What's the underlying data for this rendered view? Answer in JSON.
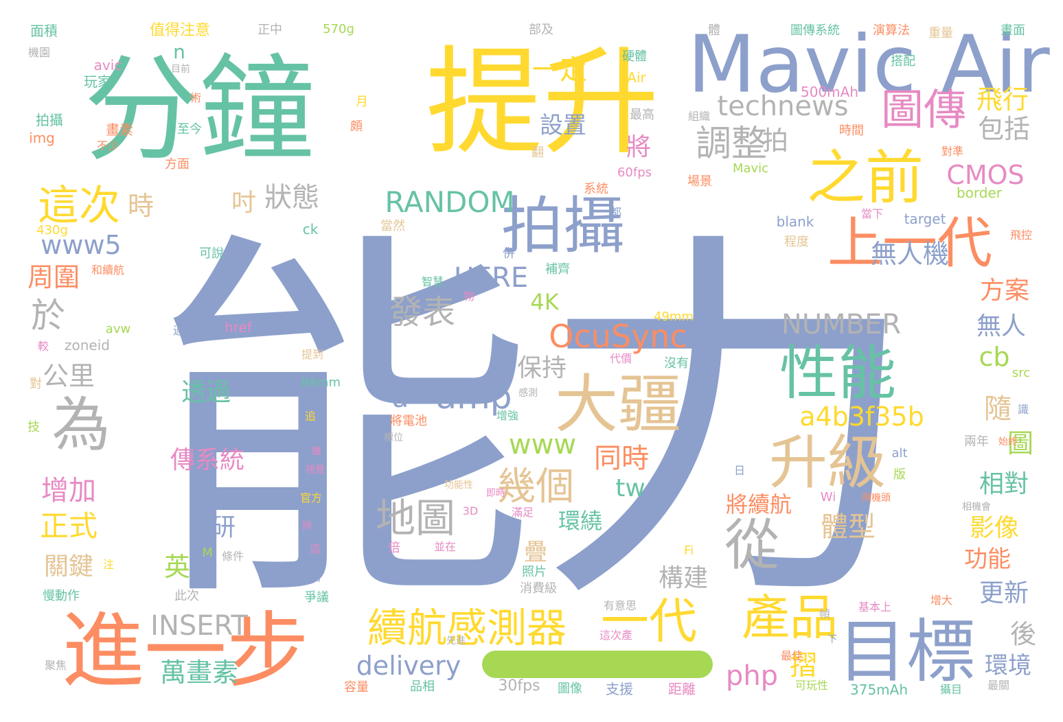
{
  "palette": {
    "blue": "#8da0cb",
    "green": "#66c2a5",
    "orange": "#fc8d62",
    "yellow": "#ffd92f",
    "pink": "#e78ac3",
    "lime": "#a6d854",
    "tan": "#e5c494",
    "gray": "#b3b3b3"
  },
  "bar_color": "#a6d854",
  "words": [
    {
      "t": "能力",
      "c": "blue"
    },
    {
      "t": "分鐘",
      "c": "green"
    },
    {
      "t": "提升",
      "c": "yellow"
    },
    {
      "t": "Mavic Air",
      "c": "blue"
    },
    {
      "t": "進一步",
      "c": "orange"
    },
    {
      "t": "目標",
      "c": "blue"
    },
    {
      "t": "拍攝",
      "c": "blue"
    },
    {
      "t": "之前",
      "c": "yellow"
    },
    {
      "t": "大疆",
      "c": "tan"
    },
    {
      "t": "性能",
      "c": "green"
    },
    {
      "t": "升級",
      "c": "tan"
    },
    {
      "t": "上一代",
      "c": "orange"
    },
    {
      "t": "為",
      "c": "gray"
    },
    {
      "t": "從",
      "c": "gray"
    },
    {
      "t": "圖傳",
      "c": "pink"
    },
    {
      "t": "產品",
      "c": "yellow"
    },
    {
      "t": "一代",
      "c": "yellow"
    },
    {
      "t": "續航感測器",
      "c": "yellow"
    },
    {
      "t": "地圖",
      "c": "gray"
    },
    {
      "t": "幾個",
      "c": "tan"
    },
    {
      "t": "發表",
      "c": "gray"
    },
    {
      "t": "OcuSync",
      "c": "orange"
    },
    {
      "t": "這次",
      "c": "yellow"
    },
    {
      "t": "調整",
      "c": "gray"
    },
    {
      "t": "technews",
      "c": "gray"
    },
    {
      "t": "RANDOM",
      "c": "green"
    },
    {
      "t": "amp",
      "c": "blue"
    },
    {
      "t": "a4b3f35b",
      "c": "yellow"
    },
    {
      "t": "一定",
      "c": "yellow"
    },
    {
      "t": "狀態",
      "c": "gray"
    },
    {
      "t": "飛行",
      "c": "yellow"
    },
    {
      "t": "包括",
      "c": "gray"
    },
    {
      "t": "CMOS",
      "c": "pink"
    },
    {
      "t": "www5",
      "c": "blue"
    },
    {
      "t": "於",
      "c": "gray"
    },
    {
      "t": "HERE",
      "c": "blue"
    },
    {
      "t": "NUMBER",
      "c": "gray"
    },
    {
      "t": "INSERT",
      "c": "gray"
    },
    {
      "t": "delivery",
      "c": "blue"
    },
    {
      "t": "www",
      "c": "lime"
    },
    {
      "t": "同時",
      "c": "orange"
    },
    {
      "t": "無人機",
      "c": "blue"
    },
    {
      "t": "萬畫素",
      "c": "green"
    },
    {
      "t": "增加",
      "c": "pink"
    },
    {
      "t": "正式",
      "c": "yellow"
    },
    {
      "t": "公里",
      "c": "gray"
    },
    {
      "t": "時",
      "c": "tan"
    },
    {
      "t": "周圍",
      "c": "orange"
    },
    {
      "t": "將",
      "c": "pink"
    },
    {
      "t": "設置",
      "c": "blue"
    },
    {
      "t": "拍",
      "c": "gray"
    },
    {
      "t": "方案",
      "c": "orange"
    },
    {
      "t": "無人",
      "c": "blue"
    },
    {
      "t": "cb",
      "c": "lime"
    },
    {
      "t": "隨",
      "c": "tan"
    },
    {
      "t": "圖",
      "c": "lime"
    },
    {
      "t": "相對",
      "c": "green"
    },
    {
      "t": "影像",
      "c": "yellow"
    },
    {
      "t": "功能",
      "c": "orange"
    },
    {
      "t": "更新",
      "c": "blue"
    },
    {
      "t": "後",
      "c": "gray"
    },
    {
      "t": "環境",
      "c": "blue"
    },
    {
      "t": "體型",
      "c": "tan"
    },
    {
      "t": "將續航",
      "c": "orange"
    },
    {
      "t": "環繞",
      "c": "green"
    },
    {
      "t": "構建",
      "c": "gray"
    },
    {
      "t": "php",
      "c": "pink"
    },
    {
      "t": "摺",
      "c": "yellow"
    },
    {
      "t": "tw",
      "c": "green"
    },
    {
      "t": "4K",
      "c": "lime"
    },
    {
      "t": "a",
      "c": "blue"
    },
    {
      "t": "保持",
      "c": "gray"
    },
    {
      "t": "透過",
      "c": "green"
    },
    {
      "t": "傳系統",
      "c": "pink"
    },
    {
      "t": "自研",
      "c": "blue"
    },
    {
      "t": "關鍵",
      "c": "tan"
    },
    {
      "t": "英",
      "c": "lime"
    },
    {
      "t": "疊",
      "c": "tan"
    },
    {
      "t": "n",
      "c": "green"
    },
    {
      "t": "吋",
      "c": "tan"
    },
    {
      "t": "面積",
      "c": "green"
    },
    {
      "t": "值得注意",
      "c": "yellow"
    },
    {
      "t": "正中",
      "c": "gray"
    },
    {
      "t": "570g",
      "c": "lime"
    },
    {
      "t": "部及",
      "c": "gray"
    },
    {
      "t": "體",
      "c": "gray"
    },
    {
      "t": "圖傳系統",
      "c": "green"
    },
    {
      "t": "演算法",
      "c": "orange"
    },
    {
      "t": "畫面",
      "c": "green"
    },
    {
      "t": "重量",
      "c": "tan"
    },
    {
      "t": "搭配",
      "c": "green"
    },
    {
      "t": "機園",
      "c": "gray"
    },
    {
      "t": "avic",
      "c": "pink"
    },
    {
      "t": "玩家",
      "c": "green"
    },
    {
      "t": "目前",
      "c": "gray"
    },
    {
      "t": "硬體",
      "c": "green"
    },
    {
      "t": "Air",
      "c": "yellow"
    },
    {
      "t": "術",
      "c": "orange"
    },
    {
      "t": "500mAh",
      "c": "pink"
    },
    {
      "t": "拍攝",
      "c": "green"
    },
    {
      "t": "月",
      "c": "yellow"
    },
    {
      "t": "最高",
      "c": "gray"
    },
    {
      "t": "組織",
      "c": "gray"
    },
    {
      "t": "時間",
      "c": "orange"
    },
    {
      "t": "畫素",
      "c": "orange"
    },
    {
      "t": "不少",
      "c": "orange"
    },
    {
      "t": "img",
      "c": "orange"
    },
    {
      "t": "至今",
      "c": "green"
    },
    {
      "t": "頗",
      "c": "orange"
    },
    {
      "t": "翻",
      "c": "tan"
    },
    {
      "t": "方面",
      "c": "orange"
    },
    {
      "t": "60fps",
      "c": "pink"
    },
    {
      "t": "場景",
      "c": "orange"
    },
    {
      "t": "Mavic",
      "c": "lime"
    },
    {
      "t": "border",
      "c": "lime"
    },
    {
      "t": "系統",
      "c": "orange"
    },
    {
      "t": "對準",
      "c": "orange"
    },
    {
      "t": "430g",
      "c": "yellow"
    },
    {
      "t": "都",
      "c": "blue"
    },
    {
      "t": "blank",
      "c": "blue"
    },
    {
      "t": "target",
      "c": "blue"
    },
    {
      "t": "當下",
      "c": "pink"
    },
    {
      "t": "當然",
      "c": "tan"
    },
    {
      "t": "程度",
      "c": "tan"
    },
    {
      "t": "飛控",
      "c": "orange"
    },
    {
      "t": "可說",
      "c": "green"
    },
    {
      "t": "和續航",
      "c": "orange"
    },
    {
      "t": "併",
      "c": "blue"
    },
    {
      "t": "補齊",
      "c": "green"
    },
    {
      "t": "ck",
      "c": "green"
    },
    {
      "t": "智慧",
      "c": "green"
    },
    {
      "t": "物",
      "c": "pink"
    },
    {
      "t": "avw",
      "c": "lime"
    },
    {
      "t": "過程",
      "c": "blue"
    },
    {
      "t": "href",
      "c": "pink"
    },
    {
      "t": "49mm",
      "c": "yellow"
    },
    {
      "t": "較",
      "c": "pink"
    },
    {
      "t": "zoneid",
      "c": "gray"
    },
    {
      "t": "提到",
      "c": "tan"
    },
    {
      "t": "代價",
      "c": "pink"
    },
    {
      "t": "沒有",
      "c": "green"
    },
    {
      "t": "對",
      "c": "tan"
    },
    {
      "t": "84mm",
      "c": "green"
    },
    {
      "t": "感測",
      "c": "gray"
    },
    {
      "t": "src",
      "c": "lime"
    },
    {
      "t": "技",
      "c": "lime"
    },
    {
      "t": "追",
      "c": "yellow"
    },
    {
      "t": "將電池",
      "c": "orange"
    },
    {
      "t": "標位",
      "c": "gray"
    },
    {
      "t": "增強",
      "c": "green"
    },
    {
      "t": "識",
      "c": "blue"
    },
    {
      "t": "始終",
      "c": "orange"
    },
    {
      "t": "兩年",
      "c": "gray"
    },
    {
      "t": "雖",
      "c": "pink"
    },
    {
      "t": "視覺",
      "c": "pink"
    },
    {
      "t": "日",
      "c": "blue"
    },
    {
      "t": "alt",
      "c": "blue"
    },
    {
      "t": "功能性",
      "c": "tan"
    },
    {
      "t": "即時",
      "c": "pink"
    },
    {
      "t": "版",
      "c": "lime"
    },
    {
      "t": "官方",
      "c": "yellow"
    },
    {
      "t": "3D",
      "c": "pink"
    },
    {
      "t": "滿足",
      "c": "pink"
    },
    {
      "t": "Wi",
      "c": "pink"
    },
    {
      "t": "飛機頭",
      "c": "orange"
    },
    {
      "t": "相機會",
      "c": "gray"
    },
    {
      "t": "辨",
      "c": "pink"
    },
    {
      "t": "條件",
      "c": "gray"
    },
    {
      "t": "M",
      "c": "lime"
    },
    {
      "t": "這",
      "c": "pink"
    },
    {
      "t": "倍",
      "c": "pink"
    },
    {
      "t": "並在",
      "c": "pink"
    },
    {
      "t": "Fi",
      "c": "yellow"
    },
    {
      "t": "注",
      "c": "yellow"
    },
    {
      "t": "照片",
      "c": "green"
    },
    {
      "t": "規劃",
      "c": "blue"
    },
    {
      "t": "慢動作",
      "c": "green"
    },
    {
      "t": "此次",
      "c": "gray"
    },
    {
      "t": "消費級",
      "c": "gray"
    },
    {
      "t": "爭議",
      "c": "green"
    },
    {
      "t": "有意思",
      "c": "gray"
    },
    {
      "t": "這次產",
      "c": "pink"
    },
    {
      "t": "幀",
      "c": "gray"
    },
    {
      "t": "基本上",
      "c": "pink"
    },
    {
      "t": "增大",
      "c": "orange"
    },
    {
      "t": "先進",
      "c": "gray"
    },
    {
      "t": "下",
      "c": "blue"
    },
    {
      "t": "聚焦",
      "c": "gray"
    },
    {
      "t": "最佳",
      "c": "orange"
    },
    {
      "t": "可玩性",
      "c": "lime"
    },
    {
      "t": "攝目",
      "c": "green"
    },
    {
      "t": "最關",
      "c": "gray"
    },
    {
      "t": "容量",
      "c": "orange"
    },
    {
      "t": "品相",
      "c": "green"
    },
    {
      "t": "30fps",
      "c": "gray"
    },
    {
      "t": "圖像",
      "c": "green"
    },
    {
      "t": "支援",
      "c": "blue"
    },
    {
      "t": "距離",
      "c": "pink"
    },
    {
      "t": "375mAh",
      "c": "green"
    }
  ]
}
